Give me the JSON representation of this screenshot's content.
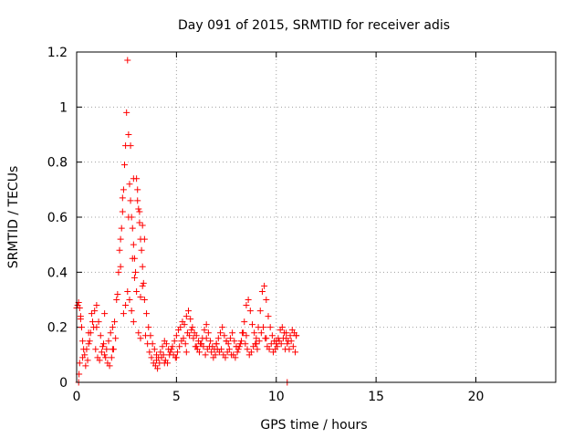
{
  "chart_data": {
    "type": "scatter",
    "title": "Day 091 of 2015, SRMTID for receiver adis",
    "xlabel": "GPS time / hours",
    "ylabel": "SRMTID / TECUs",
    "xlim": [
      0,
      24
    ],
    "ylim": [
      0,
      1.2
    ],
    "xticks": [
      "0",
      "5",
      "10",
      "15",
      "20"
    ],
    "yticks": [
      "0",
      "0.2",
      "0.4",
      "0.6",
      "0.8",
      "1",
      "1.2"
    ],
    "grid": true,
    "marker": "plus",
    "series": [
      {
        "name": "SRMTID",
        "color": "#ff0000",
        "x": [
          0.0,
          0.05,
          0.1,
          0.15,
          0.2,
          0.25,
          0.3,
          0.35,
          0.4,
          0.5,
          0.6,
          0.7,
          0.8,
          0.9,
          1.0,
          1.1,
          1.2,
          1.3,
          1.4,
          1.5,
          1.6,
          1.7,
          1.8,
          1.9,
          2.0,
          2.05,
          2.1,
          2.15,
          2.2,
          2.25,
          2.3,
          2.35,
          2.4,
          2.45,
          2.5,
          2.55,
          2.6,
          2.65,
          2.7,
          2.75,
          2.8,
          2.85,
          2.9,
          2.95,
          3.0,
          3.05,
          3.1,
          3.15,
          3.2,
          3.25,
          3.3,
          3.35,
          3.4,
          3.5,
          3.6,
          3.7,
          3.8,
          3.9,
          4.0,
          4.1,
          4.2,
          4.3,
          4.4,
          4.5,
          4.6,
          4.7,
          4.8,
          4.9,
          5.0,
          5.1,
          5.2,
          5.3,
          5.4,
          5.5,
          5.6,
          5.7,
          5.8,
          5.9,
          6.0,
          6.1,
          6.2,
          6.3,
          6.4,
          6.5,
          6.6,
          6.7,
          6.8,
          6.9,
          7.0,
          7.1,
          7.2,
          7.3,
          7.4,
          7.5,
          7.6,
          7.7,
          7.8,
          7.9,
          8.0,
          8.1,
          8.2,
          8.3,
          8.4,
          8.5,
          8.6,
          8.7,
          8.8,
          8.9,
          9.0,
          9.1,
          9.2,
          9.3,
          9.4,
          9.5,
          9.6,
          9.7,
          9.8,
          9.9,
          10.0,
          10.1,
          10.2,
          10.3,
          10.4,
          10.5,
          10.6,
          10.7,
          10.8,
          10.9,
          11.0,
          0.15,
          0.3,
          0.45,
          0.55,
          0.65,
          0.75,
          0.85,
          0.95,
          1.05,
          1.15,
          1.25,
          1.35,
          1.45,
          1.55,
          1.65,
          1.75,
          1.85,
          1.95,
          2.35,
          2.45,
          2.55,
          2.65,
          2.75,
          2.85,
          3.1,
          3.2,
          3.3,
          3.45,
          3.55,
          3.65,
          3.75,
          3.85,
          3.95,
          4.05,
          4.15,
          4.25,
          4.35,
          4.45,
          4.55,
          4.65,
          4.75,
          4.85,
          4.95,
          5.05,
          5.15,
          5.25,
          5.35,
          5.45,
          5.55,
          5.65,
          5.75,
          5.85,
          5.95,
          6.05,
          6.15,
          6.25,
          6.35,
          6.45,
          6.55,
          6.65,
          6.75,
          6.85,
          6.95,
          7.05,
          7.15,
          7.25,
          7.35,
          7.45,
          7.55,
          7.65,
          7.75,
          7.85,
          7.95,
          8.05,
          8.15,
          8.25,
          8.35,
          8.45,
          8.55,
          8.65,
          8.75,
          8.85,
          8.95,
          9.05,
          9.15,
          9.25,
          9.35,
          9.45,
          9.55,
          9.65,
          9.75,
          9.85,
          9.95,
          10.05,
          10.15,
          10.25,
          10.35,
          10.45,
          10.55,
          10.65,
          10.75,
          10.85,
          10.95,
          0.2,
          0.6,
          1.0,
          1.4,
          1.8,
          2.2,
          2.6,
          2.8,
          2.9,
          3.0,
          3.2,
          3.4,
          4.0,
          4.4,
          5.0,
          5.5,
          6.0,
          6.5,
          7.0,
          7.5,
          8.0,
          8.5,
          9.0,
          9.5,
          10.0,
          10.5,
          11.0,
          2.3,
          2.7,
          2.85,
          3.05,
          3.15,
          3.3,
          0.1,
          0.12,
          10.55
        ],
        "y": [
          0.27,
          0.28,
          0.29,
          0.27,
          0.24,
          0.2,
          0.15,
          0.12,
          0.1,
          0.12,
          0.14,
          0.18,
          0.22,
          0.26,
          0.28,
          0.22,
          0.17,
          0.13,
          0.1,
          0.12,
          0.15,
          0.18,
          0.2,
          0.22,
          0.3,
          0.32,
          0.4,
          0.48,
          0.52,
          0.56,
          0.62,
          0.7,
          0.79,
          0.86,
          0.98,
          1.17,
          0.9,
          0.72,
          0.66,
          0.6,
          0.56,
          0.5,
          0.45,
          0.4,
          0.74,
          0.7,
          0.63,
          0.58,
          0.52,
          0.48,
          0.42,
          0.36,
          0.3,
          0.25,
          0.2,
          0.17,
          0.14,
          0.12,
          0.1,
          0.09,
          0.11,
          0.13,
          0.15,
          0.14,
          0.12,
          0.11,
          0.13,
          0.15,
          0.17,
          0.19,
          0.2,
          0.22,
          0.21,
          0.24,
          0.26,
          0.23,
          0.2,
          0.18,
          0.17,
          0.15,
          0.14,
          0.16,
          0.19,
          0.21,
          0.18,
          0.15,
          0.13,
          0.12,
          0.14,
          0.16,
          0.18,
          0.2,
          0.17,
          0.15,
          0.14,
          0.16,
          0.18,
          0.15,
          0.13,
          0.12,
          0.14,
          0.18,
          0.22,
          0.28,
          0.3,
          0.26,
          0.21,
          0.18,
          0.16,
          0.2,
          0.26,
          0.33,
          0.35,
          0.3,
          0.24,
          0.2,
          0.17,
          0.15,
          0.14,
          0.16,
          0.19,
          0.2,
          0.18,
          0.16,
          0.15,
          0.17,
          0.19,
          0.18,
          0.17,
          0.07,
          0.09,
          0.06,
          0.08,
          0.15,
          0.25,
          0.2,
          0.12,
          0.09,
          0.08,
          0.11,
          0.14,
          0.09,
          0.07,
          0.06,
          0.09,
          0.12,
          0.16,
          0.25,
          0.28,
          0.33,
          0.3,
          0.26,
          0.22,
          0.18,
          0.16,
          0.35,
          0.17,
          0.14,
          0.11,
          0.09,
          0.07,
          0.06,
          0.05,
          0.07,
          0.09,
          0.1,
          0.08,
          0.07,
          0.1,
          0.12,
          0.1,
          0.09,
          0.11,
          0.13,
          0.15,
          0.16,
          0.14,
          0.18,
          0.17,
          0.19,
          0.16,
          0.13,
          0.12,
          0.11,
          0.14,
          0.13,
          0.1,
          0.12,
          0.13,
          0.11,
          0.09,
          0.1,
          0.12,
          0.11,
          0.12,
          0.1,
          0.09,
          0.11,
          0.12,
          0.1,
          0.1,
          0.09,
          0.11,
          0.13,
          0.15,
          0.18,
          0.14,
          0.12,
          0.1,
          0.11,
          0.13,
          0.14,
          0.12,
          0.15,
          0.18,
          0.2,
          0.16,
          0.13,
          0.12,
          0.14,
          0.11,
          0.12,
          0.13,
          0.15,
          0.14,
          0.16,
          0.12,
          0.14,
          0.12,
          0.15,
          0.13,
          0.11,
          0.23,
          0.18,
          0.2,
          0.25,
          0.12,
          0.42,
          0.6,
          0.45,
          0.38,
          0.33,
          0.31,
          0.52,
          0.08,
          0.07,
          0.09,
          0.11,
          0.13,
          0.16,
          0.14,
          0.15,
          0.13,
          0.17,
          0.14,
          0.16,
          0.15,
          0.18,
          0.17,
          0.67,
          0.86,
          0.74,
          0.66,
          0.62,
          0.57,
          0.0,
          0.03,
          0.0
        ]
      }
    ]
  }
}
